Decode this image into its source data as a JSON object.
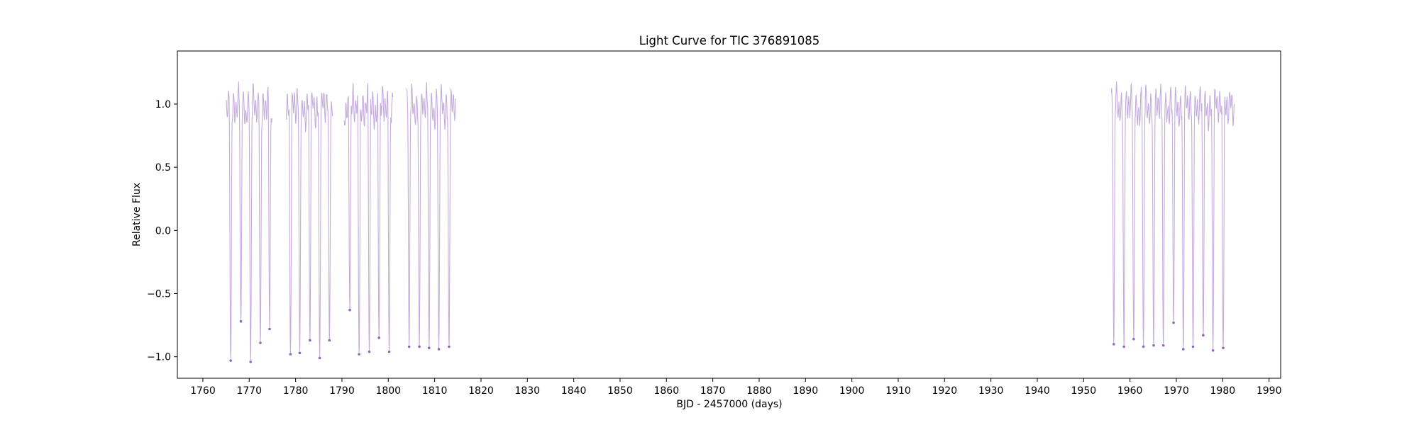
{
  "chart_data": {
    "type": "scatter",
    "title": "Light Curve for TIC 376891085",
    "xlabel": "BJD - 2457000 (days)",
    "ylabel": "Relative Flux",
    "xlim": [
      1754.5,
      1992.5
    ],
    "ylim": [
      -1.17,
      1.42
    ],
    "xticks": [
      1760,
      1770,
      1780,
      1790,
      1800,
      1810,
      1820,
      1830,
      1840,
      1850,
      1860,
      1870,
      1880,
      1890,
      1900,
      1910,
      1920,
      1930,
      1940,
      1950,
      1960,
      1970,
      1980,
      1990
    ],
    "yticks": [
      -1.0,
      -0.5,
      0.0,
      0.5,
      1.0
    ],
    "grid": false,
    "color": "#9467bd",
    "segments": [
      {
        "start": 1765.0,
        "end": 1774.9
      },
      {
        "start": 1778.0,
        "end": 1788.0
      },
      {
        "start": 1790.5,
        "end": 1801.0
      },
      {
        "start": 1804.0,
        "end": 1814.5
      },
      {
        "start": 1956.0,
        "end": 1982.5
      }
    ],
    "minima": [
      {
        "x": 1766.0,
        "y": -1.03
      },
      {
        "x": 1768.2,
        "y": -0.72
      },
      {
        "x": 1770.3,
        "y": -1.04
      },
      {
        "x": 1772.4,
        "y": -0.89
      },
      {
        "x": 1774.4,
        "y": -0.78
      },
      {
        "x": 1778.9,
        "y": -0.98
      },
      {
        "x": 1780.9,
        "y": -0.97
      },
      {
        "x": 1783.1,
        "y": -0.87
      },
      {
        "x": 1785.2,
        "y": -1.01
      },
      {
        "x": 1787.3,
        "y": -0.87
      },
      {
        "x": 1791.7,
        "y": -0.63
      },
      {
        "x": 1793.7,
        "y": -0.98
      },
      {
        "x": 1795.9,
        "y": -0.96
      },
      {
        "x": 1798.0,
        "y": -0.85
      },
      {
        "x": 1800.2,
        "y": -0.96
      },
      {
        "x": 1804.5,
        "y": -0.92
      },
      {
        "x": 1806.7,
        "y": -0.92
      },
      {
        "x": 1808.8,
        "y": -0.93
      },
      {
        "x": 1810.9,
        "y": -0.94
      },
      {
        "x": 1813.1,
        "y": -0.92
      },
      {
        "x": 1956.5,
        "y": -0.9
      },
      {
        "x": 1958.7,
        "y": -0.92
      },
      {
        "x": 1960.8,
        "y": -0.86
      },
      {
        "x": 1962.9,
        "y": -0.92
      },
      {
        "x": 1965.1,
        "y": -0.91
      },
      {
        "x": 1967.2,
        "y": -0.91
      },
      {
        "x": 1969.4,
        "y": -0.73
      },
      {
        "x": 1971.5,
        "y": -0.94
      },
      {
        "x": 1973.6,
        "y": -0.92
      },
      {
        "x": 1975.8,
        "y": -0.83
      },
      {
        "x": 1977.9,
        "y": -0.95
      },
      {
        "x": 1980.1,
        "y": -0.93
      }
    ]
  }
}
